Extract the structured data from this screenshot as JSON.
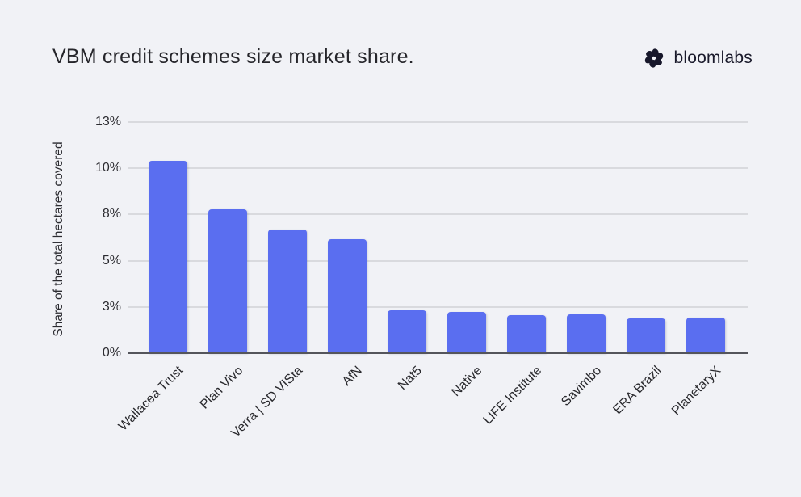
{
  "header": {
    "title": "VBM credit schemes size market share.",
    "brand": "bloomlabs"
  },
  "colors": {
    "background": "#f1f2f6",
    "bar": "#5a6ef0",
    "gridline": "#d9dade",
    "axis_line": "#54555b",
    "title_text": "#26262b",
    "brand_text": "#1a1a2b",
    "tick_text": "#2b2b30"
  },
  "chart_data": {
    "type": "bar",
    "title": "VBM credit schemes size market share.",
    "xlabel": "",
    "ylabel": "Share of the total hectares covered",
    "unit": "%",
    "categories": [
      "Wallacea Trust",
      "Plan Vivo",
      "Verra | SD VISta",
      "AfN",
      "Nat5",
      "Native",
      "LIFE Institute",
      "Savimbo",
      "ERA Brazil",
      "PlanetaryX"
    ],
    "values": [
      10.4,
      7.8,
      6.7,
      6.15,
      2.3,
      2.25,
      2.05,
      2.1,
      1.87,
      1.91
    ],
    "ylim": [
      0,
      12.5
    ],
    "yticks": [
      {
        "value": 0,
        "label": "0%"
      },
      {
        "value": 2.5,
        "label": "3%"
      },
      {
        "value": 5,
        "label": "5%"
      },
      {
        "value": 7.5,
        "label": "8%"
      },
      {
        "value": 10,
        "label": "10%"
      },
      {
        "value": 12.5,
        "label": "13%"
      }
    ],
    "grid": true,
    "legend": false,
    "bar_color": "#5a6ef0"
  }
}
